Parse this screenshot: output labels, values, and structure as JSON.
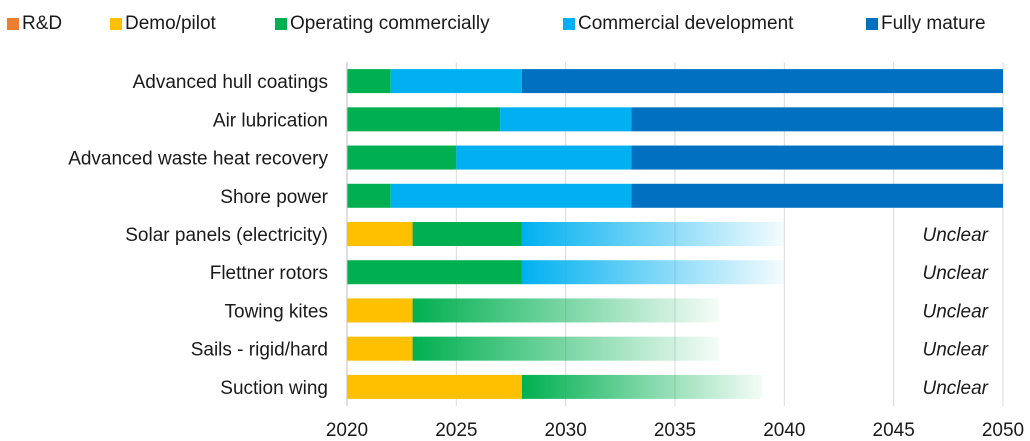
{
  "chart_data": {
    "type": "bar",
    "orientation": "horizontal",
    "stacked": true,
    "title": "",
    "xlabel": "",
    "ylabel": "",
    "xlim": [
      2020,
      2050
    ],
    "x_ticks": [
      "2020",
      "2025",
      "2030",
      "2035",
      "2040",
      "2045",
      "2050"
    ],
    "gridlines": "vertical",
    "legend_position": "top",
    "legend": [
      {
        "key": "rd",
        "name": "R&D",
        "color": "#ED7D31"
      },
      {
        "key": "demo",
        "name": "Demo/pilot",
        "color": "#FFC000"
      },
      {
        "key": "operating",
        "name": "Operating commercially",
        "color": "#00B050"
      },
      {
        "key": "development",
        "name": "Commercial development",
        "color": "#00B0F0"
      },
      {
        "key": "mature",
        "name": "Fully mature",
        "color": "#0070C0"
      }
    ],
    "categories": [
      "Advanced hull coatings",
      "Air lubrication",
      "Advanced waste heat recovery",
      "Shore power",
      "Solar panels (electricity)",
      "Flettner rotors",
      "Towing kites",
      "Sails - rigid/hard",
      "Suction wing"
    ],
    "bars": [
      {
        "category": "Advanced hull coatings",
        "segments": [
          {
            "stage": "operating",
            "start": 2020,
            "end": 2022
          },
          {
            "stage": "development",
            "start": 2022,
            "end": 2028
          },
          {
            "stage": "mature",
            "start": 2028,
            "end": 2050
          }
        ]
      },
      {
        "category": "Air lubrication",
        "segments": [
          {
            "stage": "operating",
            "start": 2020,
            "end": 2027
          },
          {
            "stage": "development",
            "start": 2027,
            "end": 2033
          },
          {
            "stage": "mature",
            "start": 2033,
            "end": 2050
          }
        ]
      },
      {
        "category": "Advanced waste heat recovery",
        "segments": [
          {
            "stage": "operating",
            "start": 2020,
            "end": 2025
          },
          {
            "stage": "development",
            "start": 2025,
            "end": 2033
          },
          {
            "stage": "mature",
            "start": 2033,
            "end": 2050
          }
        ]
      },
      {
        "category": "Shore power",
        "segments": [
          {
            "stage": "operating",
            "start": 2020,
            "end": 2022
          },
          {
            "stage": "development",
            "start": 2022,
            "end": 2033
          },
          {
            "stage": "mature",
            "start": 2033,
            "end": 2050
          }
        ]
      },
      {
        "category": "Solar panels (electricity)",
        "annotation": "Unclear",
        "segments": [
          {
            "stage": "demo",
            "start": 2020,
            "end": 2023
          },
          {
            "stage": "operating",
            "start": 2023,
            "end": 2028
          },
          {
            "stage": "development",
            "start": 2028,
            "end": 2040,
            "fade": true
          }
        ]
      },
      {
        "category": "Flettner rotors",
        "annotation": "Unclear",
        "segments": [
          {
            "stage": "operating",
            "start": 2020,
            "end": 2028
          },
          {
            "stage": "development",
            "start": 2028,
            "end": 2040,
            "fade": true
          }
        ]
      },
      {
        "category": "Towing kites",
        "annotation": "Unclear",
        "segments": [
          {
            "stage": "demo",
            "start": 2020,
            "end": 2023
          },
          {
            "stage": "operating",
            "start": 2023,
            "end": 2037,
            "fade": true
          }
        ]
      },
      {
        "category": "Sails - rigid/hard",
        "annotation": "Unclear",
        "segments": [
          {
            "stage": "demo",
            "start": 2020,
            "end": 2023
          },
          {
            "stage": "operating",
            "start": 2023,
            "end": 2037,
            "fade": true
          }
        ]
      },
      {
        "category": "Suction wing",
        "annotation": "Unclear",
        "segments": [
          {
            "stage": "demo",
            "start": 2020,
            "end": 2028
          },
          {
            "stage": "operating",
            "start": 2028,
            "end": 2039,
            "fade": true
          }
        ]
      }
    ]
  }
}
